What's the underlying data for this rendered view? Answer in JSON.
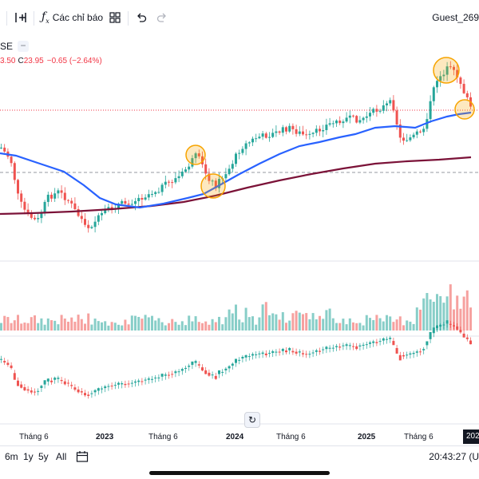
{
  "toolbar": {
    "indicators_label": "Các chỉ báo",
    "user_label": "Guest_269"
  },
  "legend": {
    "symbol_fragment": "SE",
    "low_fragment": "3.50",
    "close_label": "C",
    "close_value": "23.95",
    "change": "−0.65 (−2.64%)"
  },
  "xaxis": {
    "labels": [
      "Tháng 6",
      "2023",
      "Tháng 6",
      "2024",
      "Tháng 6",
      "2025",
      "Tháng 6"
    ],
    "current": "202"
  },
  "bottombar": {
    "ranges": [
      "6m",
      "1y",
      "5y",
      "All"
    ],
    "time": "20:43:27 (U"
  },
  "colors": {
    "up": "#26a69a",
    "down": "#ef5350",
    "ma_fast": "#2962ff",
    "ma_slow": "#7b1238",
    "highlight": "#f7a400"
  },
  "icons": {
    "compare": "plus-square-icon",
    "indicators": "fx-icon",
    "templates": "grid-icon",
    "undo": "undo-icon",
    "redo": "redo-icon",
    "date_range": "calendar-icon",
    "reset": "reset-icon"
  }
}
